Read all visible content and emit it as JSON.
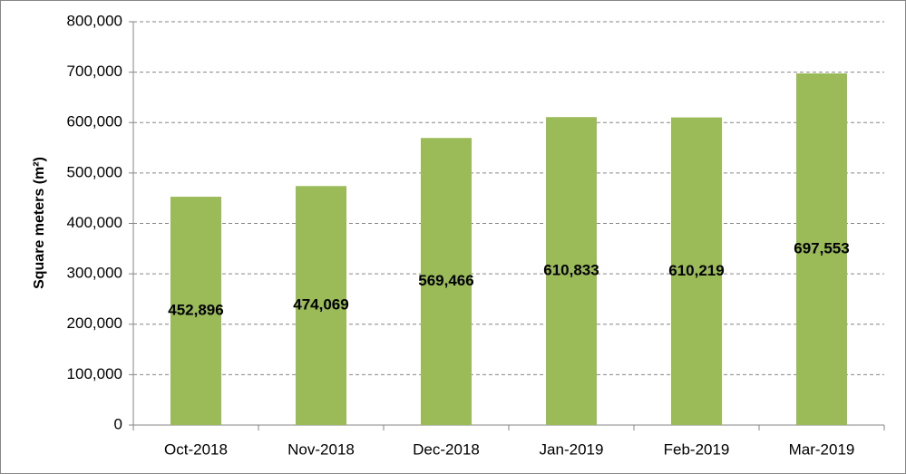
{
  "chart_data": {
    "type": "bar",
    "y_label": "Square meters (m²)",
    "categories": [
      "Oct-2018",
      "Nov-2018",
      "Dec-2018",
      "Jan-2019",
      "Feb-2019",
      "Mar-2019"
    ],
    "values": [
      452896,
      474069,
      569466,
      610833,
      610219,
      697553
    ],
    "value_labels": [
      "452,896",
      "474,069",
      "569,466",
      "610,833",
      "610,219",
      "697,553"
    ],
    "color": "#9bbb59",
    "ylim": [
      0,
      800000
    ],
    "yticks": [
      0,
      {
        "value": 100000,
        "label": "100,000"
      },
      {
        "value": 200000,
        "label": "200,000"
      },
      {
        "value": 300000,
        "label": "300,000"
      },
      {
        "value": 400000,
        "label": "400,000"
      },
      {
        "value": 500000,
        "label": "500,000"
      },
      {
        "value": 600000,
        "label": "600,000"
      },
      {
        "value": 700000,
        "label": "700,000"
      },
      {
        "value": 800000,
        "label": "800,000"
      }
    ],
    "grid": true
  }
}
